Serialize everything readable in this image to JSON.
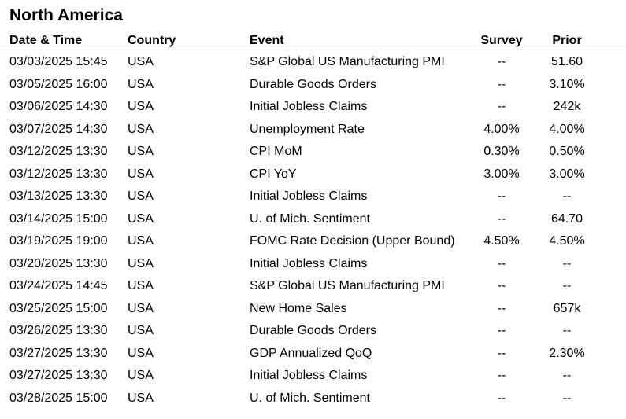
{
  "title": "North America",
  "columns": {
    "date": "Date & Time",
    "country": "Country",
    "event": "Event",
    "survey": "Survey",
    "prior": "Prior"
  },
  "rows": [
    {
      "date": "03/03/2025 15:45",
      "country": "USA",
      "event": "S&P Global US Manufacturing PMI",
      "survey": "--",
      "prior": "51.60"
    },
    {
      "date": "03/05/2025 16:00",
      "country": "USA",
      "event": "Durable Goods Orders",
      "survey": "--",
      "prior": "3.10%"
    },
    {
      "date": "03/06/2025 14:30",
      "country": "USA",
      "event": "Initial Jobless Claims",
      "survey": "--",
      "prior": "242k"
    },
    {
      "date": "03/07/2025 14:30",
      "country": "USA",
      "event": "Unemployment Rate",
      "survey": "4.00%",
      "prior": "4.00%"
    },
    {
      "date": "03/12/2025 13:30",
      "country": "USA",
      "event": "CPI MoM",
      "survey": "0.30%",
      "prior": "0.50%"
    },
    {
      "date": "03/12/2025 13:30",
      "country": "USA",
      "event": "CPI YoY",
      "survey": "3.00%",
      "prior": "3.00%"
    },
    {
      "date": "03/13/2025 13:30",
      "country": "USA",
      "event": "Initial Jobless Claims",
      "survey": "--",
      "prior": "--"
    },
    {
      "date": "03/14/2025 15:00",
      "country": "USA",
      "event": "U. of Mich. Sentiment",
      "survey": "--",
      "prior": "64.70"
    },
    {
      "date": "03/19/2025 19:00",
      "country": "USA",
      "event": "FOMC Rate Decision (Upper Bound)",
      "survey": "4.50%",
      "prior": "4.50%"
    },
    {
      "date": "03/20/2025 13:30",
      "country": "USA",
      "event": "Initial Jobless Claims",
      "survey": "--",
      "prior": "--"
    },
    {
      "date": "03/24/2025 14:45",
      "country": "USA",
      "event": "S&P Global US Manufacturing PMI",
      "survey": "--",
      "prior": "--"
    },
    {
      "date": "03/25/2025 15:00",
      "country": "USA",
      "event": "New Home Sales",
      "survey": "--",
      "prior": "657k"
    },
    {
      "date": "03/26/2025 13:30",
      "country": "USA",
      "event": "Durable Goods Orders",
      "survey": "--",
      "prior": "--"
    },
    {
      "date": "03/27/2025 13:30",
      "country": "USA",
      "event": "GDP Annualized QoQ",
      "survey": "--",
      "prior": "2.30%"
    },
    {
      "date": "03/27/2025 13:30",
      "country": "USA",
      "event": "Initial Jobless Claims",
      "survey": "--",
      "prior": "--"
    },
    {
      "date": "03/28/2025 15:00",
      "country": "USA",
      "event": "U. of Mich. Sentiment",
      "survey": "--",
      "prior": "--"
    }
  ]
}
